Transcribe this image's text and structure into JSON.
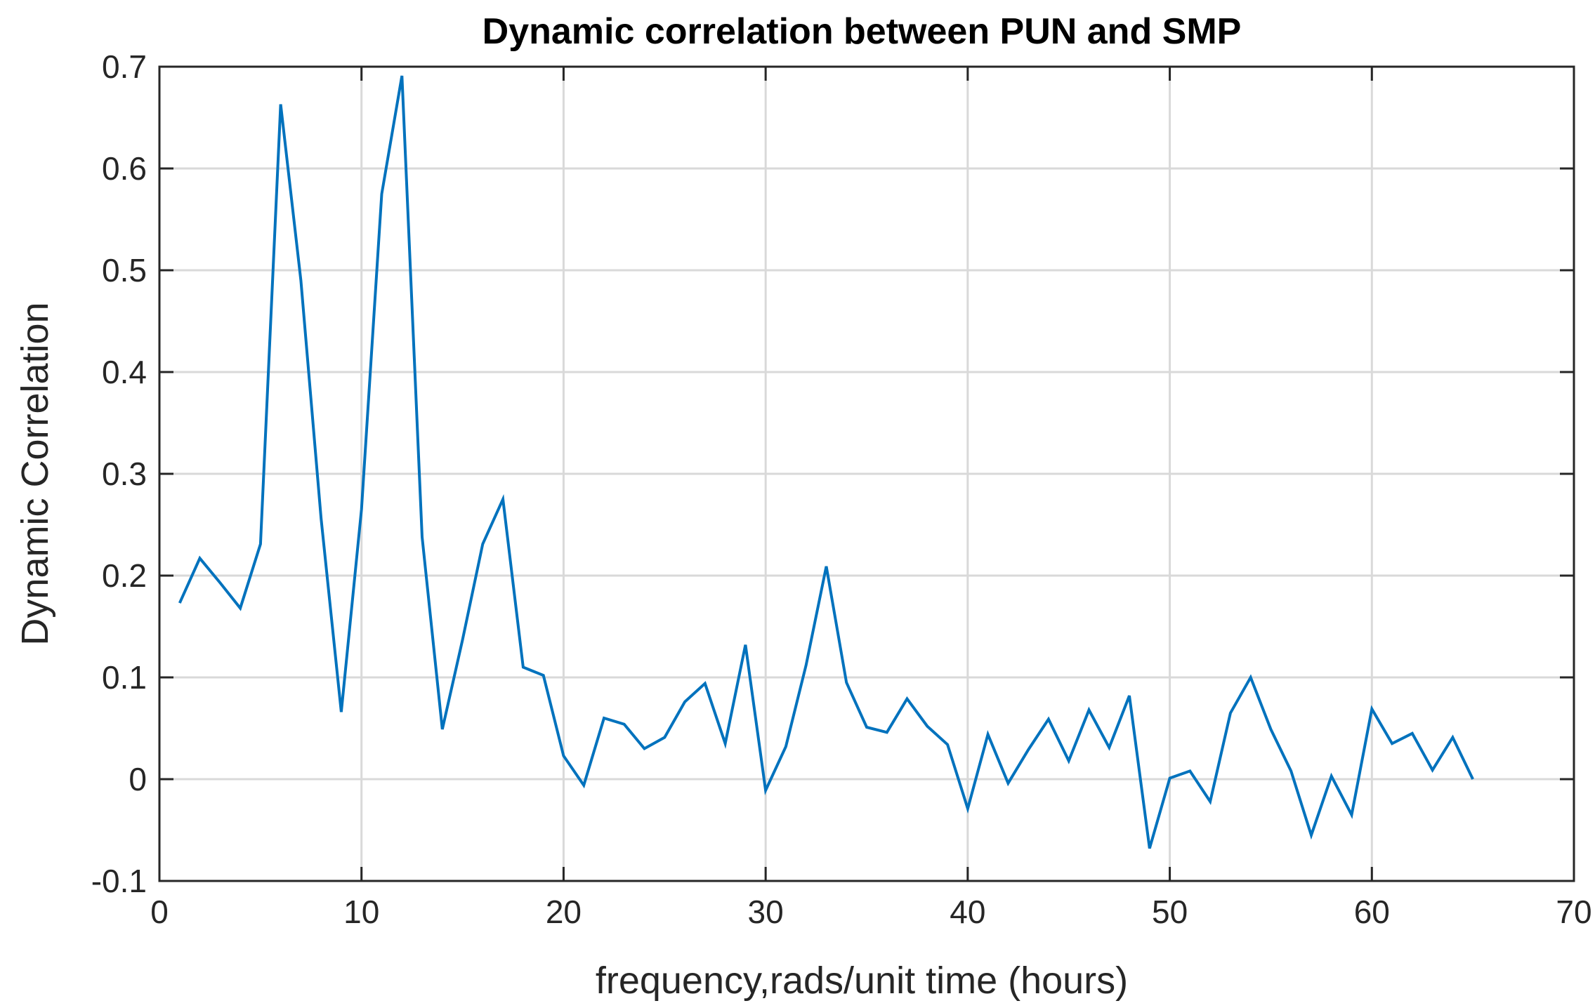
{
  "chart_data": {
    "type": "line",
    "title": "Dynamic correlation between PUN and SMP",
    "xlabel": "frequency,rads/unit time (hours)",
    "ylabel": "Dynamic Correlation",
    "xlim": [
      0,
      70
    ],
    "ylim": [
      -0.1,
      0.7
    ],
    "xticks": [
      0,
      10,
      20,
      30,
      40,
      50,
      60,
      70
    ],
    "xtick_labels": [
      "0",
      "10",
      "20",
      "30",
      "40",
      "50",
      "60",
      "70"
    ],
    "yticks": [
      -0.1,
      0,
      0.1,
      0.2,
      0.3,
      0.4,
      0.5,
      0.6,
      0.7
    ],
    "ytick_labels": [
      "-0.1",
      "0",
      "0.1",
      "0.2",
      "0.3",
      "0.4",
      "0.5",
      "0.6",
      "0.7"
    ],
    "grid": true,
    "legend": "none",
    "series": [
      {
        "color": "#0072BD",
        "x": [
          1,
          2,
          3,
          4,
          5,
          6,
          7,
          8,
          9,
          10,
          11,
          12,
          13,
          14,
          15,
          16,
          17,
          18,
          19,
          20,
          21,
          22,
          23,
          24,
          25,
          26,
          27,
          28,
          29,
          30,
          31,
          32,
          33,
          34,
          35,
          36,
          37,
          38,
          39,
          40,
          41,
          42,
          43,
          44,
          45,
          46,
          47,
          48,
          49,
          50,
          51,
          52,
          53,
          54,
          55,
          56,
          57,
          58,
          59,
          60,
          61,
          62,
          63,
          64,
          65
        ],
        "y": [
          0.173,
          0.217,
          0.193,
          0.168,
          0.231,
          0.663,
          0.49,
          0.256,
          0.066,
          0.265,
          0.575,
          0.691,
          0.238,
          0.049,
          0.137,
          0.231,
          0.275,
          0.11,
          0.102,
          0.023,
          -0.006,
          0.06,
          0.054,
          0.03,
          0.041,
          0.076,
          0.094,
          0.035,
          0.132,
          -0.011,
          0.032,
          0.112,
          0.209,
          0.095,
          0.051,
          0.046,
          0.079,
          0.052,
          0.034,
          -0.029,
          0.044,
          -0.004,
          0.029,
          0.059,
          0.018,
          0.068,
          0.031,
          0.082,
          -0.068,
          0.001,
          0.008,
          -0.022,
          0.065,
          0.1,
          0.049,
          0.008,
          -0.055,
          0.003,
          -0.035,
          0.069,
          0.035,
          0.045,
          0.009,
          0.041,
          0.0
        ]
      }
    ]
  }
}
